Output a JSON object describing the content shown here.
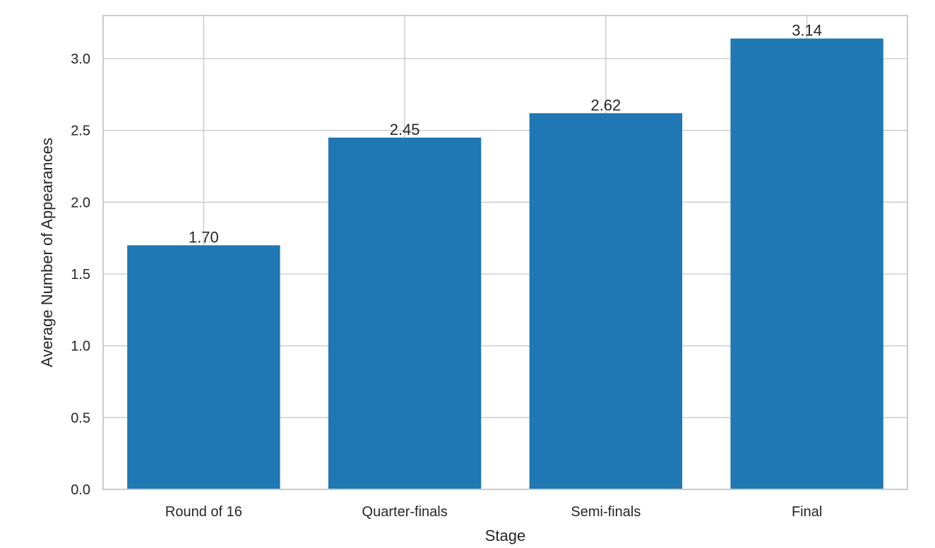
{
  "chart_data": {
    "type": "bar",
    "title": "",
    "xlabel": "Stage",
    "ylabel": "Average Number of Appearances",
    "categories": [
      "Round of 16",
      "Quarter-finals",
      "Semi-finals",
      "Final"
    ],
    "values": [
      1.7,
      2.45,
      2.62,
      3.14
    ],
    "data_labels": [
      "1.70",
      "2.45",
      "2.62",
      "3.14"
    ],
    "ylim": [
      0,
      3.3
    ],
    "yticks": [
      0.0,
      0.5,
      1.0,
      1.5,
      2.0,
      2.5,
      3.0
    ],
    "ytick_labels": [
      "0.0",
      "0.5",
      "1.0",
      "1.5",
      "2.0",
      "2.5",
      "3.0"
    ],
    "grid": true,
    "bar_color": "#1f77b4"
  }
}
